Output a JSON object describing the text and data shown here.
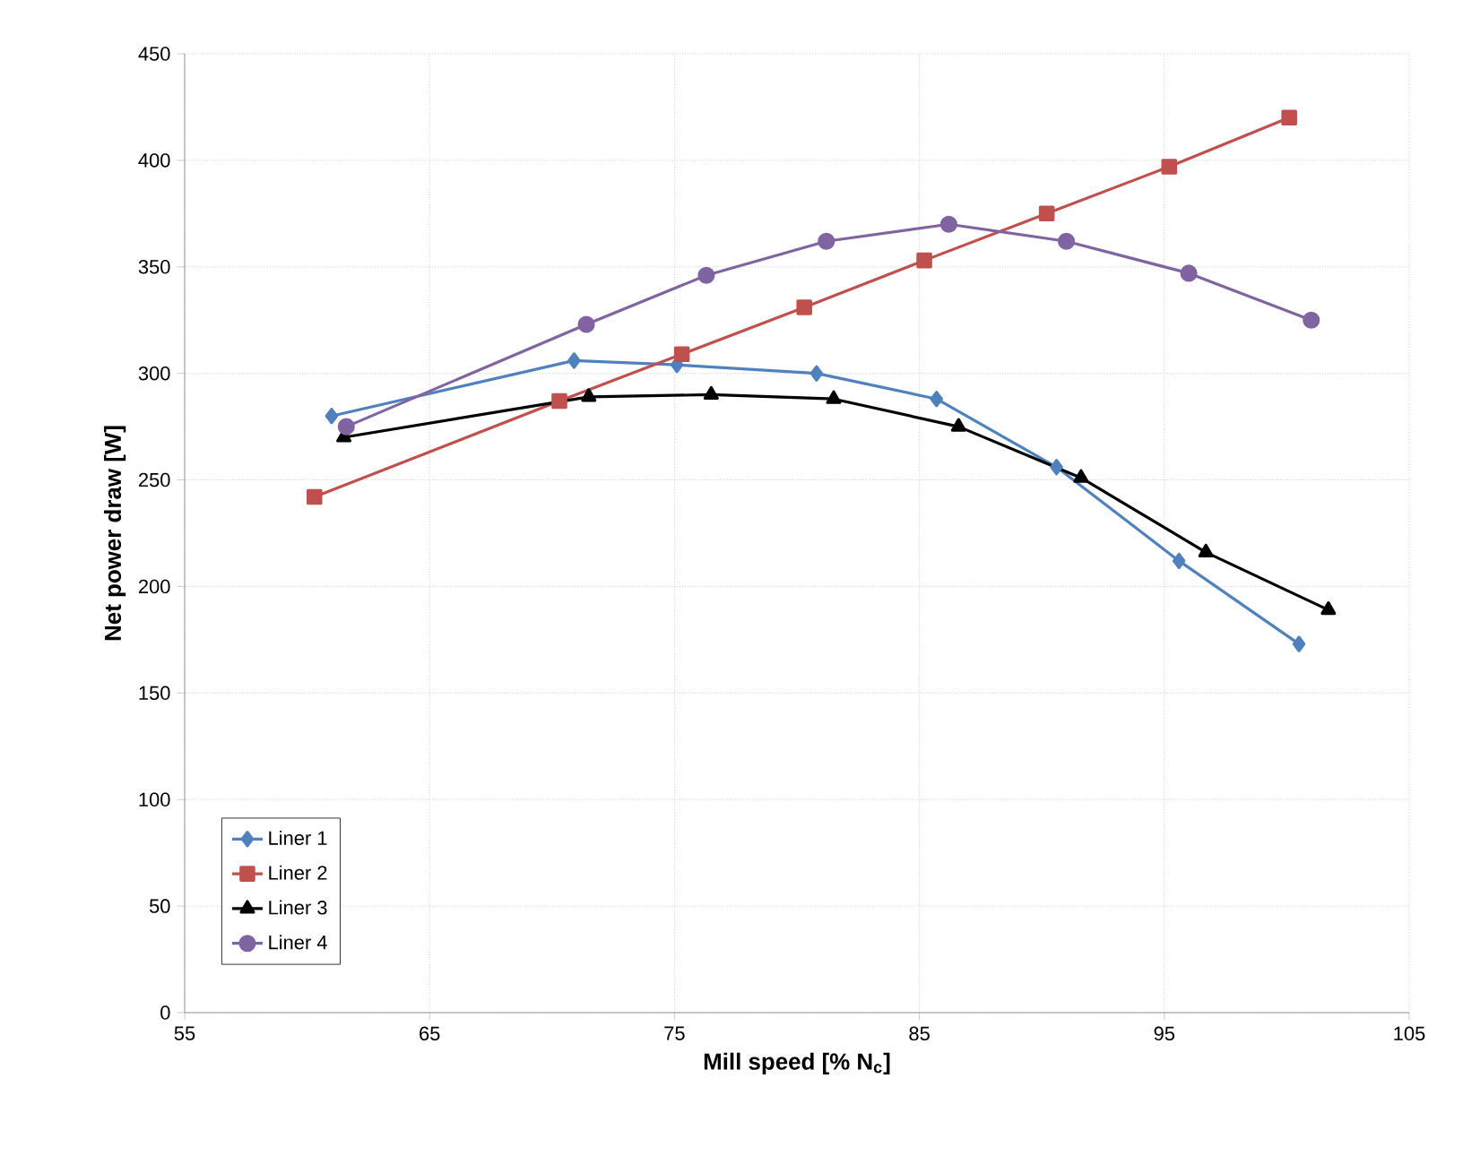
{
  "chart_data": {
    "type": "line",
    "xlabel": "Mill speed [% N$_{c}$]",
    "ylabel": "Net power draw [W]",
    "xlim": [
      55,
      105
    ],
    "xticks": [
      55,
      65,
      75,
      85,
      95,
      105
    ],
    "ylim": [
      0,
      450
    ],
    "yticks": [
      0,
      50,
      100,
      150,
      200,
      250,
      300,
      350,
      400,
      450
    ],
    "grid": true,
    "legend": "bottom left",
    "line_style": "solid",
    "series": [
      {
        "name": "Liner 1",
        "color": "#4f81bd",
        "marker": "diamond",
        "x": [
          61.0,
          70.9,
          75.1,
          80.8,
          85.7,
          90.6,
          95.6,
          100.5
        ],
        "values": [
          280,
          306,
          304,
          300,
          288,
          256,
          212,
          173
        ]
      },
      {
        "name": "Liner 2",
        "color": "#c0504d",
        "marker": "square",
        "x": [
          60.3,
          70.3,
          75.3,
          80.3,
          85.2,
          90.2,
          95.2,
          100.1
        ],
        "values": [
          242,
          287,
          309,
          331,
          353,
          375,
          397,
          420
        ]
      },
      {
        "name": "Liner 3",
        "color": "#000000",
        "marker": "triangle",
        "x": [
          61.5,
          71.5,
          76.5,
          81.5,
          86.6,
          91.6,
          96.7,
          101.7
        ],
        "values": [
          270,
          289,
          290,
          288,
          275,
          251,
          216,
          189
        ]
      },
      {
        "name": "Liner 4",
        "color": "#8064a2",
        "marker": "circle",
        "x": [
          61.6,
          71.4,
          76.3,
          81.2,
          86.2,
          91.0,
          96.0,
          101.0
        ],
        "values": [
          275,
          323,
          346,
          362,
          370,
          362,
          347,
          325
        ]
      }
    ]
  }
}
